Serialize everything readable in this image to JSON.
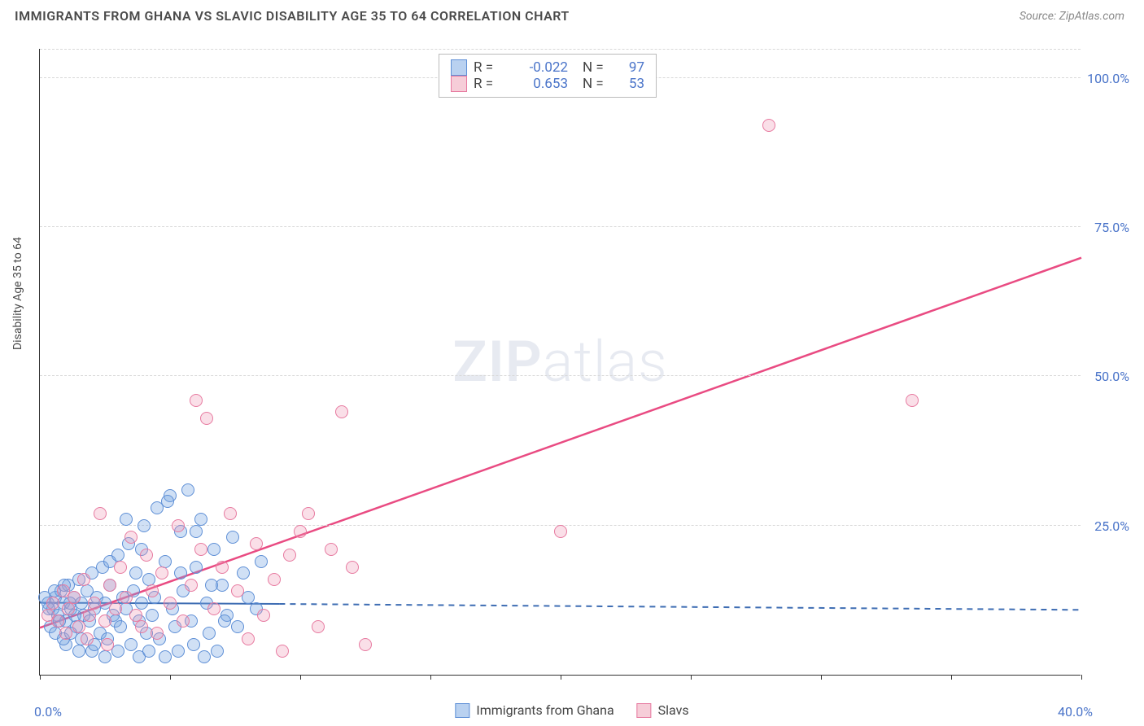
{
  "title": "IMMIGRANTS FROM GHANA VS SLAVIC DISABILITY AGE 35 TO 64 CORRELATION CHART",
  "source": "Source: ZipAtlas.com",
  "y_axis_label": "Disability Age 35 to 64",
  "watermark_bold": "ZIP",
  "watermark_light": "atlas",
  "legend_top": {
    "rows": [
      {
        "r_label": "R =",
        "r_value": "-0.022",
        "n_label": "N =",
        "n_value": "97",
        "swatch_fill": "#b9d1f0",
        "swatch_border": "#5e8fd6"
      },
      {
        "r_label": "R =",
        "r_value": "0.653",
        "n_label": "N =",
        "n_value": "53",
        "swatch_fill": "#f6cdd8",
        "swatch_border": "#e77aa0"
      }
    ]
  },
  "legend_bottom": {
    "items": [
      {
        "label": "Immigrants from Ghana",
        "swatch_fill": "#b9d1f0",
        "swatch_border": "#5e8fd6"
      },
      {
        "label": "Slavs",
        "swatch_fill": "#f6cdd8",
        "swatch_border": "#e77aa0"
      }
    ]
  },
  "chart": {
    "type": "scatter",
    "xlim": [
      0,
      40
    ],
    "ylim": [
      0,
      105
    ],
    "x_ticks": [
      0,
      5,
      10,
      15,
      20,
      25,
      30,
      35,
      40
    ],
    "x_tick_labels": {
      "0": "0.0%",
      "40": "40.0%"
    },
    "y_gridlines": [
      25,
      50,
      75,
      100
    ],
    "y_tick_labels": {
      "25": "25.0%",
      "50": "50.0%",
      "75": "75.0%",
      "100": "100.0%"
    },
    "background_color": "#ffffff",
    "grid_color": "#d8d8d8",
    "marker_radius": 8,
    "marker_border_width": 1.5,
    "series": [
      {
        "name": "ghana",
        "fill": "rgba(120,165,225,0.35)",
        "stroke": "#5e8fd6",
        "trend": {
          "solid_to_x": 9.2,
          "y0": 12.2,
          "y_at_solid_end": 12.0,
          "y_at_xmax": 11.0,
          "color": "#3e6db3",
          "width": 2
        },
        "points": [
          [
            0.3,
            12
          ],
          [
            0.5,
            11
          ],
          [
            0.6,
            13
          ],
          [
            0.7,
            10
          ],
          [
            0.8,
            14
          ],
          [
            0.9,
            12
          ],
          [
            1.0,
            9
          ],
          [
            1.1,
            15
          ],
          [
            1.2,
            11
          ],
          [
            1.3,
            13
          ],
          [
            1.4,
            8
          ],
          [
            1.5,
            16
          ],
          [
            1.6,
            12
          ],
          [
            1.7,
            10
          ],
          [
            1.8,
            14
          ],
          [
            1.9,
            9
          ],
          [
            2.0,
            17
          ],
          [
            2.1,
            11
          ],
          [
            2.2,
            13
          ],
          [
            2.3,
            7
          ],
          [
            2.4,
            18
          ],
          [
            2.5,
            12
          ],
          [
            2.6,
            6
          ],
          [
            2.7,
            15
          ],
          [
            2.8,
            10
          ],
          [
            2.9,
            9
          ],
          [
            3.0,
            20
          ],
          [
            3.1,
            8
          ],
          [
            3.2,
            13
          ],
          [
            3.3,
            11
          ],
          [
            3.4,
            22
          ],
          [
            3.5,
            5
          ],
          [
            3.6,
            14
          ],
          [
            3.7,
            17
          ],
          [
            3.8,
            9
          ],
          [
            3.9,
            12
          ],
          [
            4.0,
            25
          ],
          [
            4.1,
            7
          ],
          [
            4.2,
            16
          ],
          [
            4.3,
            10
          ],
          [
            4.5,
            28
          ],
          [
            4.6,
            6
          ],
          [
            4.8,
            19
          ],
          [
            5.0,
            30
          ],
          [
            5.1,
            11
          ],
          [
            5.2,
            8
          ],
          [
            5.4,
            24
          ],
          [
            5.5,
            14
          ],
          [
            5.7,
            31
          ],
          [
            5.8,
            9
          ],
          [
            6.0,
            18
          ],
          [
            6.2,
            26
          ],
          [
            6.4,
            12
          ],
          [
            6.5,
            7
          ],
          [
            6.7,
            21
          ],
          [
            7.0,
            15
          ],
          [
            7.2,
            10
          ],
          [
            7.4,
            23
          ],
          [
            7.6,
            8
          ],
          [
            7.8,
            17
          ],
          [
            8.0,
            13
          ],
          [
            8.3,
            11
          ],
          [
            8.5,
            19
          ],
          [
            2.0,
            4
          ],
          [
            2.5,
            3
          ],
          [
            3.0,
            4
          ],
          [
            3.8,
            3
          ],
          [
            4.2,
            4
          ],
          [
            4.8,
            3
          ],
          [
            5.3,
            4
          ],
          [
            5.9,
            5
          ],
          [
            6.3,
            3
          ],
          [
            6.8,
            4
          ],
          [
            1.0,
            5
          ],
          [
            1.5,
            4
          ],
          [
            0.4,
            8
          ],
          [
            0.6,
            7
          ],
          [
            0.9,
            6
          ],
          [
            1.2,
            7
          ],
          [
            1.6,
            6
          ],
          [
            2.1,
            5
          ],
          [
            2.7,
            19
          ],
          [
            3.3,
            26
          ],
          [
            3.9,
            21
          ],
          [
            4.4,
            13
          ],
          [
            4.9,
            29
          ],
          [
            5.4,
            17
          ],
          [
            6.0,
            24
          ],
          [
            6.6,
            15
          ],
          [
            7.1,
            9
          ],
          [
            0.2,
            13
          ],
          [
            0.35,
            11
          ],
          [
            0.55,
            14
          ],
          [
            0.75,
            9
          ],
          [
            0.95,
            15
          ],
          [
            1.15,
            12
          ],
          [
            1.35,
            10
          ]
        ]
      },
      {
        "name": "slavs",
        "fill": "rgba(240,150,180,0.30)",
        "stroke": "#e77aa0",
        "trend": {
          "y0": 8.0,
          "y_at_xmax": 70.0,
          "color": "#e94b82",
          "width": 2.5
        },
        "points": [
          [
            0.3,
            10
          ],
          [
            0.5,
            12
          ],
          [
            0.7,
            9
          ],
          [
            0.9,
            14
          ],
          [
            1.1,
            11
          ],
          [
            1.3,
            13
          ],
          [
            1.5,
            8
          ],
          [
            1.7,
            16
          ],
          [
            1.9,
            10
          ],
          [
            2.1,
            12
          ],
          [
            2.3,
            27
          ],
          [
            2.5,
            9
          ],
          [
            2.7,
            15
          ],
          [
            2.9,
            11
          ],
          [
            3.1,
            18
          ],
          [
            3.3,
            13
          ],
          [
            3.5,
            23
          ],
          [
            3.7,
            10
          ],
          [
            3.9,
            8
          ],
          [
            4.1,
            20
          ],
          [
            4.3,
            14
          ],
          [
            4.5,
            7
          ],
          [
            4.7,
            17
          ],
          [
            5.0,
            12
          ],
          [
            5.3,
            25
          ],
          [
            5.5,
            9
          ],
          [
            5.8,
            15
          ],
          [
            6.0,
            46
          ],
          [
            6.2,
            21
          ],
          [
            6.4,
            43
          ],
          [
            6.7,
            11
          ],
          [
            7.0,
            18
          ],
          [
            7.3,
            27
          ],
          [
            7.6,
            14
          ],
          [
            8.0,
            6
          ],
          [
            8.3,
            22
          ],
          [
            8.6,
            10
          ],
          [
            9.0,
            16
          ],
          [
            9.3,
            4
          ],
          [
            9.6,
            20
          ],
          [
            10.0,
            24
          ],
          [
            10.3,
            27
          ],
          [
            10.7,
            8
          ],
          [
            11.2,
            21
          ],
          [
            11.6,
            44
          ],
          [
            12.0,
            18
          ],
          [
            12.5,
            5
          ],
          [
            20.0,
            24
          ],
          [
            28.0,
            92
          ],
          [
            33.5,
            46
          ],
          [
            1.0,
            7
          ],
          [
            1.8,
            6
          ],
          [
            2.6,
            5
          ]
        ]
      }
    ]
  }
}
